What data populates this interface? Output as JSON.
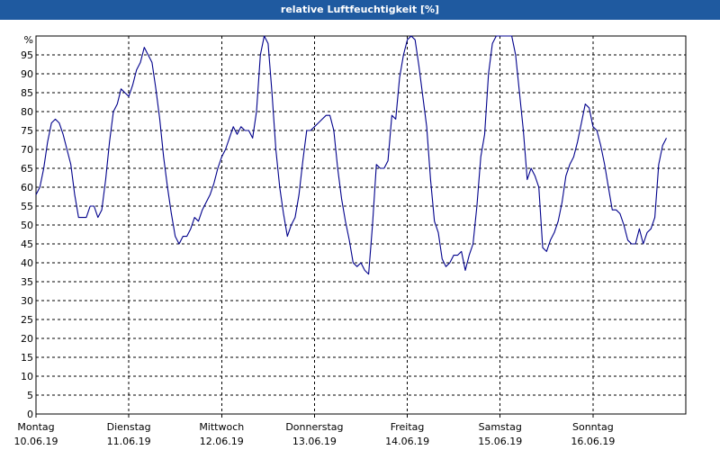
{
  "chart_data": {
    "type": "line",
    "title": "relative Luftfeuchtigkeit [%]",
    "y_unit_label": "%",
    "ylim": [
      0,
      100
    ],
    "yticks": [
      0,
      5,
      10,
      15,
      20,
      25,
      30,
      35,
      40,
      45,
      50,
      55,
      60,
      65,
      70,
      75,
      80,
      85,
      90,
      95
    ],
    "grid": true,
    "days": [
      {
        "name": "Montag",
        "date": "10.06.19"
      },
      {
        "name": "Dienstag",
        "date": "11.06.19"
      },
      {
        "name": "Mittwoch",
        "date": "12.06.19"
      },
      {
        "name": "Donnerstag",
        "date": "13.06.19"
      },
      {
        "name": "Freitag",
        "date": "14.06.19"
      },
      {
        "name": "Samstag",
        "date": "15.06.19"
      },
      {
        "name": "Sonntag",
        "date": "16.06.19"
      }
    ],
    "x_unit": "hours since 10.06.19 00:00",
    "xlim": [
      0,
      168
    ],
    "series": [
      {
        "color": "#00008b",
        "points": [
          [
            0,
            58
          ],
          [
            1,
            60
          ],
          [
            2,
            65
          ],
          [
            3,
            72
          ],
          [
            4,
            77
          ],
          [
            5,
            78
          ],
          [
            6,
            77
          ],
          [
            7,
            74
          ],
          [
            8,
            70
          ],
          [
            9,
            66
          ],
          [
            10,
            58
          ],
          [
            11,
            52
          ],
          [
            12,
            52
          ],
          [
            13,
            52
          ],
          [
            14,
            55
          ],
          [
            15,
            55
          ],
          [
            16,
            52
          ],
          [
            17,
            54
          ],
          [
            18,
            62
          ],
          [
            19,
            72
          ],
          [
            20,
            80
          ],
          [
            21,
            82
          ],
          [
            22,
            86
          ],
          [
            23,
            85
          ],
          [
            24,
            84
          ],
          [
            25,
            87
          ],
          [
            26,
            91
          ],
          [
            27,
            93
          ],
          [
            28,
            97
          ],
          [
            29,
            95
          ],
          [
            30,
            93
          ],
          [
            31,
            86
          ],
          [
            32,
            78
          ],
          [
            33,
            68
          ],
          [
            34,
            60
          ],
          [
            35,
            53
          ],
          [
            36,
            47
          ],
          [
            37,
            45
          ],
          [
            38,
            47
          ],
          [
            39,
            47
          ],
          [
            40,
            49
          ],
          [
            41,
            52
          ],
          [
            42,
            51
          ],
          [
            43,
            54
          ],
          [
            44,
            56
          ],
          [
            45,
            58
          ],
          [
            46,
            61
          ],
          [
            47,
            65
          ],
          [
            48,
            68
          ],
          [
            49,
            70
          ],
          [
            50,
            73
          ],
          [
            51,
            76
          ],
          [
            52,
            74
          ],
          [
            53,
            76
          ],
          [
            54,
            75
          ],
          [
            55,
            75
          ],
          [
            56,
            73
          ],
          [
            57,
            80
          ],
          [
            58,
            95
          ],
          [
            59,
            100
          ],
          [
            60,
            98
          ],
          [
            61,
            85
          ],
          [
            62,
            70
          ],
          [
            63,
            60
          ],
          [
            64,
            53
          ],
          [
            65,
            47
          ],
          [
            66,
            50
          ],
          [
            67,
            52
          ],
          [
            68,
            58
          ],
          [
            69,
            67
          ],
          [
            70,
            75
          ],
          [
            71,
            75
          ],
          [
            72,
            76
          ],
          [
            73,
            77
          ],
          [
            74,
            78
          ],
          [
            75,
            79
          ],
          [
            76,
            79
          ],
          [
            77,
            75
          ],
          [
            78,
            65
          ],
          [
            79,
            57
          ],
          [
            80,
            51
          ],
          [
            81,
            46
          ],
          [
            82,
            40
          ],
          [
            83,
            39
          ],
          [
            84,
            40
          ],
          [
            85,
            38
          ],
          [
            86,
            37
          ],
          [
            87,
            50
          ],
          [
            88,
            66
          ],
          [
            89,
            65
          ],
          [
            90,
            65
          ],
          [
            91,
            67
          ],
          [
            92,
            79
          ],
          [
            93,
            78
          ],
          [
            94,
            89
          ],
          [
            95,
            95
          ],
          [
            96,
            99
          ],
          [
            97,
            100
          ],
          [
            98,
            99
          ],
          [
            99,
            92
          ],
          [
            100,
            84
          ],
          [
            101,
            76
          ],
          [
            102,
            62
          ],
          [
            103,
            51
          ],
          [
            104,
            48
          ],
          [
            105,
            41
          ],
          [
            106,
            39
          ],
          [
            107,
            40
          ],
          [
            108,
            42
          ],
          [
            109,
            42
          ],
          [
            110,
            43
          ],
          [
            111,
            38
          ],
          [
            112,
            42
          ],
          [
            113,
            45
          ],
          [
            114,
            55
          ],
          [
            115,
            68
          ],
          [
            116,
            74
          ],
          [
            117,
            90
          ],
          [
            118,
            98
          ],
          [
            119,
            100
          ],
          [
            120,
            100
          ],
          [
            121,
            100
          ],
          [
            122,
            100
          ],
          [
            123,
            100
          ],
          [
            124,
            95
          ],
          [
            125,
            85
          ],
          [
            126,
            75
          ],
          [
            127,
            62
          ],
          [
            128,
            65
          ],
          [
            129,
            63
          ],
          [
            130,
            60
          ],
          [
            131,
            44
          ],
          [
            132,
            43
          ],
          [
            133,
            46
          ],
          [
            134,
            48
          ],
          [
            135,
            51
          ],
          [
            136,
            56
          ],
          [
            137,
            63
          ],
          [
            138,
            66
          ],
          [
            139,
            68
          ],
          [
            140,
            72
          ],
          [
            141,
            77
          ],
          [
            142,
            82
          ],
          [
            143,
            81
          ],
          [
            144,
            76
          ],
          [
            145,
            75
          ],
          [
            146,
            71
          ],
          [
            147,
            66
          ],
          [
            148,
            60
          ],
          [
            149,
            54
          ],
          [
            150,
            54
          ],
          [
            151,
            53
          ],
          [
            152,
            50
          ],
          [
            153,
            46
          ],
          [
            154,
            45
          ],
          [
            155,
            45
          ],
          [
            156,
            49
          ],
          [
            157,
            45
          ],
          [
            158,
            48
          ],
          [
            159,
            49
          ],
          [
            160,
            52
          ],
          [
            161,
            66
          ],
          [
            162,
            71
          ],
          [
            163,
            73
          ]
        ]
      }
    ]
  }
}
